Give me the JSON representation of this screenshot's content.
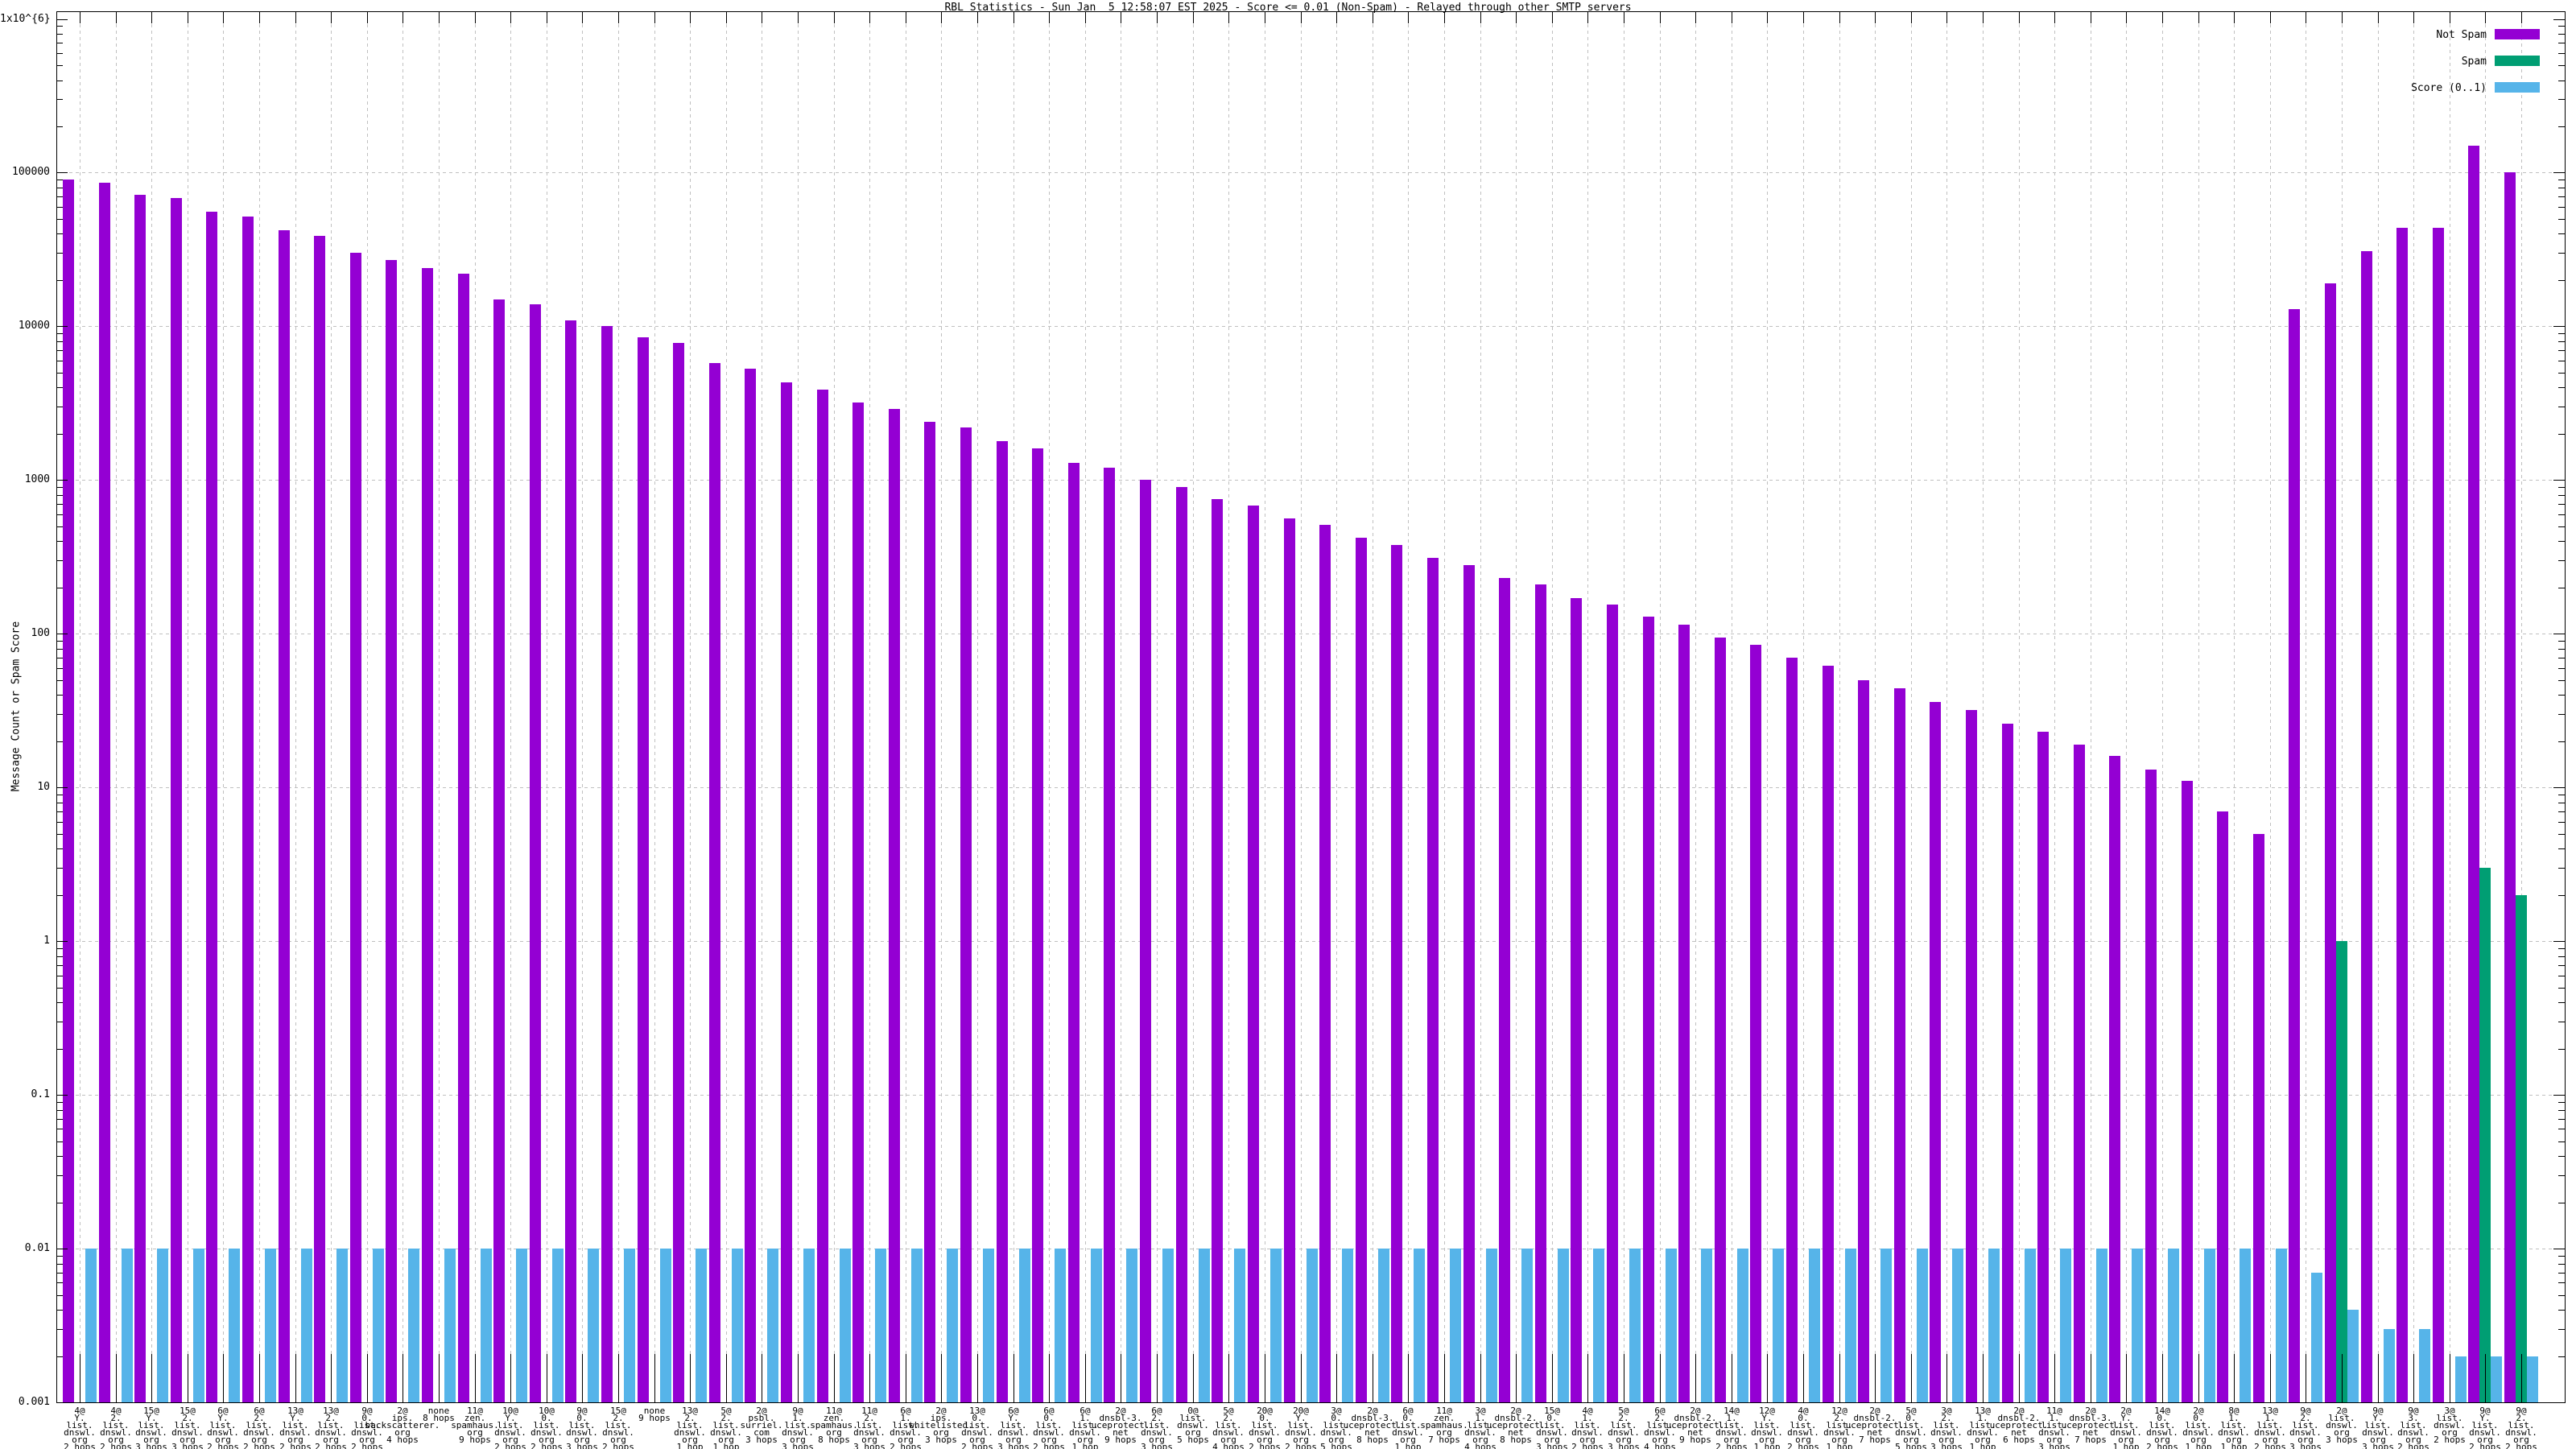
{
  "title": "RBL Statistics - Sun Jan  5 12:58:07 EST 2025 - Score <= 0.01 (Non-Spam) - Relayed through other SMTP servers",
  "ylabel": "Message Count or Spam Score",
  "legend": [
    {
      "label": "Not Spam",
      "color": "#9400d3"
    },
    {
      "label": "Spam",
      "color": "#009e73"
    },
    {
      "label": "Score (0..1)",
      "color": "#56b4e9"
    }
  ],
  "colors": {
    "axis": "#000000",
    "grid": "#c0c0c0",
    "background": "#ffffff",
    "not_spam": "#9400d3",
    "spam": "#009e73",
    "score": "#56b4e9"
  },
  "y_axis": {
    "scale": "log",
    "tick_labels": [
      "1x10^{6}",
      "100000",
      "10000",
      "1000",
      "100",
      "10",
      "1",
      "0.1",
      "0.01",
      "0.001"
    ],
    "tick_values": [
      1000000,
      100000,
      10000,
      1000,
      100,
      10,
      1,
      0.1,
      0.01,
      0.001
    ]
  },
  "chart_data": {
    "type": "bar",
    "title": "RBL Statistics - Sun Jan  5 12:58:07 EST 2025 - Score <= 0.01 (Non-Spam) - Relayed through other SMTP servers",
    "xlabel": "",
    "ylabel": "Message Count or Spam Score",
    "ylim": [
      0.001,
      1000000
    ],
    "grid": true,
    "legend_position": "top-right",
    "categories": [
      [
        "4@",
        "Y.",
        "list.",
        "dnswl.",
        "org",
        "2 hops"
      ],
      [
        "4@",
        "2.",
        "list.",
        "dnswl.",
        "org",
        "2 hops"
      ],
      [
        "15@",
        "Y.",
        "list.",
        "dnswl.",
        "org",
        "3 hops"
      ],
      [
        "15@",
        "2.",
        "list.",
        "dnswl.",
        "org",
        "3 hops"
      ],
      [
        "6@",
        "Y.",
        "list.",
        "dnswl.",
        "org",
        "2 hops"
      ],
      [
        "6@",
        "2.",
        "list.",
        "dnswl.",
        "org",
        "2 hops"
      ],
      [
        "13@",
        "Y.",
        "list.",
        "dnswl.",
        "org",
        "2 hops"
      ],
      [
        "13@",
        "2.",
        "list.",
        "dnswl.",
        "org",
        "2 hops"
      ],
      [
        "9@",
        "0.",
        "list.",
        "dnswl.",
        "org",
        "2 hops"
      ],
      [
        "2@",
        "ips.",
        "backscatterer.",
        "org",
        "4 hops"
      ],
      [
        "none",
        "8 hops"
      ],
      [
        "11@",
        "zen.",
        "spamhaus.",
        "org",
        "9 hops"
      ],
      [
        "10@",
        "Y.",
        "list.",
        "dnswl.",
        "org",
        "2 hops"
      ],
      [
        "10@",
        "0.",
        "list.",
        "dnswl.",
        "org",
        "2 hops"
      ],
      [
        "9@",
        "0.",
        "list.",
        "dnswl.",
        "org",
        "3 hops"
      ],
      [
        "15@",
        "2.",
        "list.",
        "dnswl.",
        "org",
        "2 hops"
      ],
      [
        "none",
        "9 hops"
      ],
      [
        "13@",
        "2.",
        "list.",
        "dnswl.",
        "org",
        "1 hop"
      ],
      [
        "5@",
        "2.",
        "list.",
        "dnswl.",
        "org",
        "1 hop"
      ],
      [
        "2@",
        "psbl.",
        "surriel.",
        "com",
        "3 hops"
      ],
      [
        "9@",
        "1.",
        "list.",
        "dnswl.",
        "org",
        "3 hops"
      ],
      [
        "11@",
        "zen.",
        "spamhaus.",
        "org",
        "8 hops"
      ],
      [
        "11@",
        "2.",
        "list.",
        "dnswl.",
        "org",
        "3 hops"
      ],
      [
        "6@",
        "1.",
        "list.",
        "dnswl.",
        "org",
        "2 hops"
      ],
      [
        "2@",
        "ips.",
        "whitelisted.",
        "org",
        "3 hops"
      ],
      [
        "13@",
        "0.",
        "list.",
        "dnswl.",
        "org",
        "2 hops"
      ],
      [
        "6@",
        "Y.",
        "list.",
        "dnswl.",
        "org",
        "3 hops"
      ],
      [
        "6@",
        "0.",
        "list.",
        "dnswl.",
        "org",
        "2 hops"
      ],
      [
        "6@",
        "1.",
        "list.",
        "dnswl.",
        "org",
        "1 hop"
      ],
      [
        "2@",
        "dnsbl-3.",
        "uceprotect.",
        "net",
        "9 hops"
      ],
      [
        "6@",
        "2.",
        "list.",
        "dnswl.",
        "org",
        "3 hops"
      ],
      [
        "0@",
        "list.",
        "dnswl.",
        "org",
        "5 hops"
      ],
      [
        "5@",
        "2.",
        "list.",
        "dnswl.",
        "org",
        "4 hops"
      ],
      [
        "20@",
        "0.",
        "list.",
        "dnswl.",
        "org",
        "2 hops"
      ],
      [
        "20@",
        "Y.",
        "list.",
        "dnswl.",
        "org",
        "2 hops"
      ],
      [
        "3@",
        "0.",
        "list.",
        "dnswl.",
        "org",
        "5 hops"
      ],
      [
        "2@",
        "dnsbl-3.",
        "uceprotect.",
        "net",
        "8 hops"
      ],
      [
        "6@",
        "0.",
        "list.",
        "dnswl.",
        "org",
        "1 hop"
      ],
      [
        "11@",
        "zen.",
        "spamhaus.",
        "org",
        "7 hops"
      ],
      [
        "3@",
        "1.",
        "list.",
        "dnswl.",
        "org",
        "4 hops"
      ],
      [
        "2@",
        "dnsbl-2.",
        "uceprotect.",
        "net",
        "8 hops"
      ],
      [
        "15@",
        "0.",
        "list.",
        "dnswl.",
        "org",
        "3 hops"
      ],
      [
        "4@",
        "1.",
        "list.",
        "dnswl.",
        "org",
        "2 hops"
      ],
      [
        "5@",
        "2.",
        "list.",
        "dnswl.",
        "org",
        "3 hops"
      ],
      [
        "6@",
        "2.",
        "list.",
        "dnswl.",
        "org",
        "4 hops"
      ],
      [
        "2@",
        "dnsbl-2.",
        "uceprotect.",
        "net",
        "9 hops"
      ],
      [
        "14@",
        "1.",
        "list.",
        "dnswl.",
        "org",
        "2 hops"
      ],
      [
        "12@",
        "Y.",
        "list.",
        "dnswl.",
        "org",
        "1 hop"
      ],
      [
        "4@",
        "0.",
        "list.",
        "dnswl.",
        "org",
        "2 hops"
      ],
      [
        "12@",
        "2.",
        "list.",
        "dnswl.",
        "org",
        "1 hop"
      ],
      [
        "2@",
        "dnsbl-2.",
        "uceprotect.",
        "net",
        "7 hops"
      ],
      [
        "5@",
        "0.",
        "list.",
        "dnswl.",
        "org",
        "5 hops"
      ],
      [
        "3@",
        "2.",
        "list.",
        "dnswl.",
        "org",
        "3 hops"
      ],
      [
        "13@",
        "1.",
        "list.",
        "dnswl.",
        "org",
        "1 hop"
      ],
      [
        "2@",
        "dnsbl-2.",
        "uceprotect.",
        "net",
        "6 hops"
      ],
      [
        "11@",
        "1.",
        "list.",
        "dnswl.",
        "org",
        "3 hops"
      ],
      [
        "2@",
        "dnsbl-3.",
        "uceprotect.",
        "net",
        "7 hops"
      ],
      [
        "2@",
        "Y.",
        "list.",
        "dnswl.",
        "org",
        "1 hop"
      ],
      [
        "14@",
        "0.",
        "list.",
        "dnswl.",
        "org",
        "2 hops"
      ],
      [
        "2@",
        "0.",
        "list.",
        "dnswl.",
        "org",
        "1 hop"
      ],
      [
        "8@",
        "1.",
        "list.",
        "dnswl.",
        "org",
        "1 hop"
      ],
      [
        "13@",
        "1.",
        "list.",
        "dnswl.",
        "org",
        "2 hops"
      ],
      [
        "9@",
        "2.",
        "list.",
        "dnswl.",
        "org",
        "3 hops"
      ],
      [
        "2@",
        "list.",
        "dnswl.",
        "org",
        "3 hops"
      ],
      [
        "9@",
        "Y.",
        "list.",
        "dnswl.",
        "org",
        "3 hops"
      ],
      [
        "9@",
        "3.",
        "list.",
        "dnswl.",
        "org",
        "2 hops"
      ],
      [
        "3@",
        "list.",
        "dnswl.",
        "org",
        "2 hops"
      ],
      [
        "9@",
        "Y.",
        "list.",
        "dnswl.",
        "org",
        "2 hops"
      ],
      [
        "9@",
        "2.",
        "list.",
        "dnswl.",
        "org",
        "2 hops"
      ]
    ],
    "series": [
      {
        "name": "Not Spam",
        "color": "#9400d3",
        "values": [
          90000,
          86000,
          72000,
          68000,
          56000,
          52000,
          42000,
          39000,
          30000,
          27000,
          24000,
          22000,
          15000,
          14000,
          11000,
          10000,
          8500,
          7800,
          5800,
          5300,
          4300,
          3900,
          3200,
          2900,
          2400,
          2200,
          1800,
          1600,
          1300,
          1200,
          1000,
          900,
          750,
          680,
          560,
          510,
          420,
          380,
          310,
          280,
          230,
          210,
          170,
          155,
          130,
          115,
          95,
          85,
          70,
          62,
          50,
          44,
          36,
          32,
          26,
          23,
          19,
          16,
          13,
          11,
          7,
          5,
          13000,
          19000,
          31000,
          44000,
          44000,
          149000,
          101000
        ]
      },
      {
        "name": "Spam",
        "color": "#009e73",
        "values": [
          0,
          0,
          0,
          0,
          0,
          0,
          0,
          0,
          0,
          0,
          0,
          0,
          0,
          0,
          0,
          0,
          0,
          0,
          0,
          0,
          0,
          0,
          0,
          0,
          0,
          0,
          0,
          0,
          0,
          0,
          0,
          0,
          0,
          0,
          0,
          0,
          0,
          0,
          0,
          0,
          0,
          0,
          0,
          0,
          0,
          0,
          0,
          0,
          0,
          0,
          0,
          0,
          0,
          0,
          0,
          0,
          0,
          0,
          0,
          0,
          0,
          0,
          0,
          1,
          0,
          0,
          0,
          3,
          2
        ]
      },
      {
        "name": "Score (0..1)",
        "color": "#56b4e9",
        "values": [
          0.01,
          0.01,
          0.01,
          0.01,
          0.01,
          0.01,
          0.01,
          0.01,
          0.01,
          0.01,
          0.01,
          0.01,
          0.01,
          0.01,
          0.01,
          0.01,
          0.01,
          0.01,
          0.01,
          0.01,
          0.01,
          0.01,
          0.01,
          0.01,
          0.01,
          0.01,
          0.01,
          0.01,
          0.01,
          0.01,
          0.01,
          0.01,
          0.01,
          0.01,
          0.01,
          0.01,
          0.01,
          0.01,
          0.01,
          0.01,
          0.01,
          0.01,
          0.01,
          0.01,
          0.01,
          0.01,
          0.01,
          0.01,
          0.01,
          0.01,
          0.01,
          0.01,
          0.01,
          0.01,
          0.01,
          0.01,
          0.01,
          0.01,
          0.01,
          0.01,
          0.01,
          0.01,
          0.007,
          0.004,
          0.003,
          0.003,
          0.002,
          0.002,
          0.002
        ]
      }
    ]
  }
}
